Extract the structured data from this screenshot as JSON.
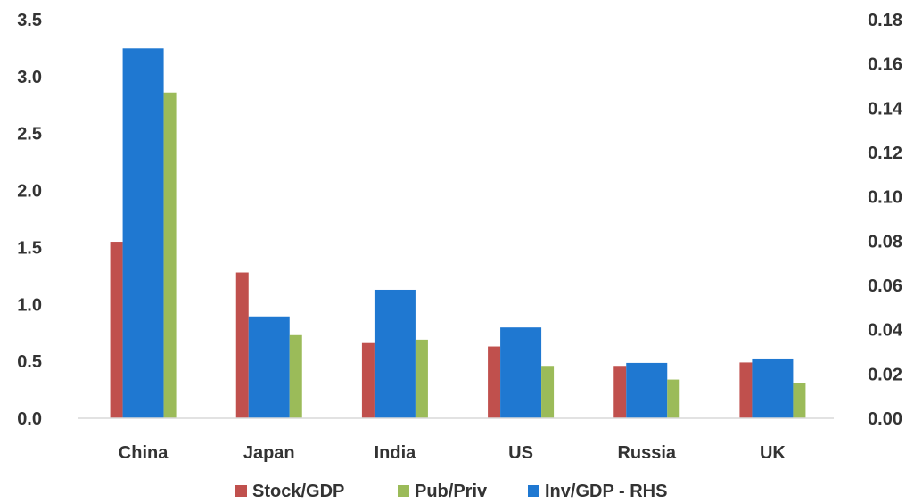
{
  "chart_data": {
    "type": "bar",
    "categories": [
      "China",
      "Japan",
      "India",
      "US",
      "Russia",
      "UK"
    ],
    "series": [
      {
        "name": "Stock/GDP",
        "axis": "left",
        "color": "#c0504d",
        "values": [
          1.55,
          1.28,
          0.66,
          0.63,
          0.46,
          0.49
        ]
      },
      {
        "name": "Inv/GDP - RHS",
        "axis": "right",
        "color": "#1f78d1",
        "values": [
          0.167,
          0.046,
          0.058,
          0.041,
          0.025,
          0.027
        ]
      },
      {
        "name": "Pub/Priv",
        "axis": "left",
        "color": "#9bbb59",
        "values": [
          2.86,
          0.73,
          0.69,
          0.46,
          0.34,
          0.31
        ]
      }
    ],
    "left_axis": {
      "ylim": [
        0,
        3.5
      ],
      "ticks": [
        "0.0",
        "0.5",
        "1.0",
        "1.5",
        "2.0",
        "2.5",
        "3.0",
        "3.5"
      ]
    },
    "right_axis": {
      "ylim": [
        0,
        0.18
      ],
      "ticks": [
        "0.00",
        "0.02",
        "0.04",
        "0.06",
        "0.08",
        "0.10",
        "0.12",
        "0.14",
        "0.16",
        "0.18"
      ]
    },
    "legend": {
      "placement": "bottom",
      "entries": [
        {
          "label": "Stock/GDP",
          "color": "#c0504d"
        },
        {
          "label": "Pub/Priv",
          "color": "#9bbb59"
        },
        {
          "label": "Inv/GDP - RHS",
          "color": "#1f78d1"
        }
      ]
    },
    "grid": false,
    "title": "",
    "xlabel": "",
    "ylabel": ""
  }
}
